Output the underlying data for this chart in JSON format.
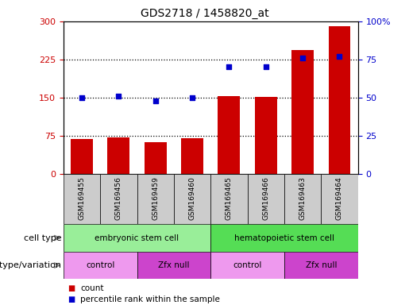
{
  "title": "GDS2718 / 1458820_at",
  "samples": [
    "GSM169455",
    "GSM169456",
    "GSM169459",
    "GSM169460",
    "GSM169465",
    "GSM169466",
    "GSM169463",
    "GSM169464"
  ],
  "counts": [
    68,
    72,
    63,
    70,
    153,
    151,
    243,
    291
  ],
  "percentile_ranks": [
    50,
    51,
    48,
    50,
    70,
    70,
    76,
    77
  ],
  "left_ylim": [
    0,
    300
  ],
  "right_ylim": [
    0,
    100
  ],
  "left_yticks": [
    0,
    75,
    150,
    225,
    300
  ],
  "right_yticks": [
    0,
    25,
    50,
    75,
    100
  ],
  "right_yticklabels": [
    "0",
    "25",
    "50",
    "75",
    "100%"
  ],
  "bar_color": "#cc0000",
  "dot_color": "#0000cc",
  "cell_type_groups": [
    {
      "text": "embryonic stem cell",
      "start": 0,
      "end": 4,
      "color": "#99ee99"
    },
    {
      "text": "hematopoietic stem cell",
      "start": 4,
      "end": 8,
      "color": "#55dd55"
    }
  ],
  "genotype_groups": [
    {
      "text": "control",
      "start": 0,
      "end": 2,
      "color": "#ee99ee"
    },
    {
      "text": "Zfx null",
      "start": 2,
      "end": 4,
      "color": "#cc44cc"
    },
    {
      "text": "control",
      "start": 4,
      "end": 6,
      "color": "#ee99ee"
    },
    {
      "text": "Zfx null",
      "start": 6,
      "end": 8,
      "color": "#cc44cc"
    }
  ],
  "cell_type_label": "cell type",
  "genotype_label": "genotype/variation",
  "legend_count_color": "#cc0000",
  "legend_dot_color": "#0000cc",
  "legend_count_label": "count",
  "legend_dot_label": "percentile rank within the sample",
  "background_color": "#ffffff",
  "tick_color_left": "#cc0000",
  "tick_color_right": "#0000cc",
  "sample_box_color": "#cccccc",
  "dotted_line_color": "#000000"
}
